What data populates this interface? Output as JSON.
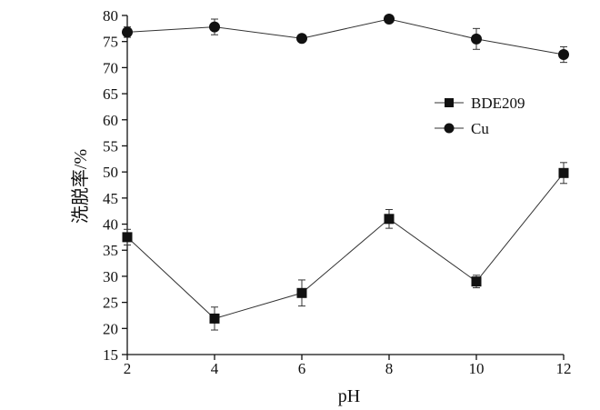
{
  "chart_data": {
    "type": "line",
    "title": "",
    "xlabel": "pH",
    "ylabel": "洗脱率/%",
    "x": [
      2,
      4,
      6,
      8,
      10,
      12
    ],
    "xlim": [
      2,
      12
    ],
    "ylim": [
      15,
      80
    ],
    "xticks": [
      "2",
      "4",
      "6",
      "8",
      "10",
      "12"
    ],
    "yticks": [
      "15",
      "20",
      "25",
      "30",
      "35",
      "40",
      "45",
      "50",
      "55",
      "60",
      "65",
      "70",
      "75",
      "80"
    ],
    "grid": false,
    "legend_position": "right",
    "series": [
      {
        "name": "BDE209",
        "marker": "square",
        "color": "#111111",
        "values": [
          37.5,
          21.9,
          26.8,
          41.0,
          29.0,
          49.8
        ],
        "errors": [
          1.5,
          2.2,
          2.5,
          1.8,
          1.2,
          2.0
        ]
      },
      {
        "name": "Cu",
        "marker": "circle",
        "color": "#111111",
        "values": [
          76.8,
          77.8,
          75.6,
          79.3,
          75.5,
          72.5
        ],
        "errors": [
          1.0,
          1.5,
          0.5,
          0.5,
          2.0,
          1.5
        ]
      }
    ]
  }
}
